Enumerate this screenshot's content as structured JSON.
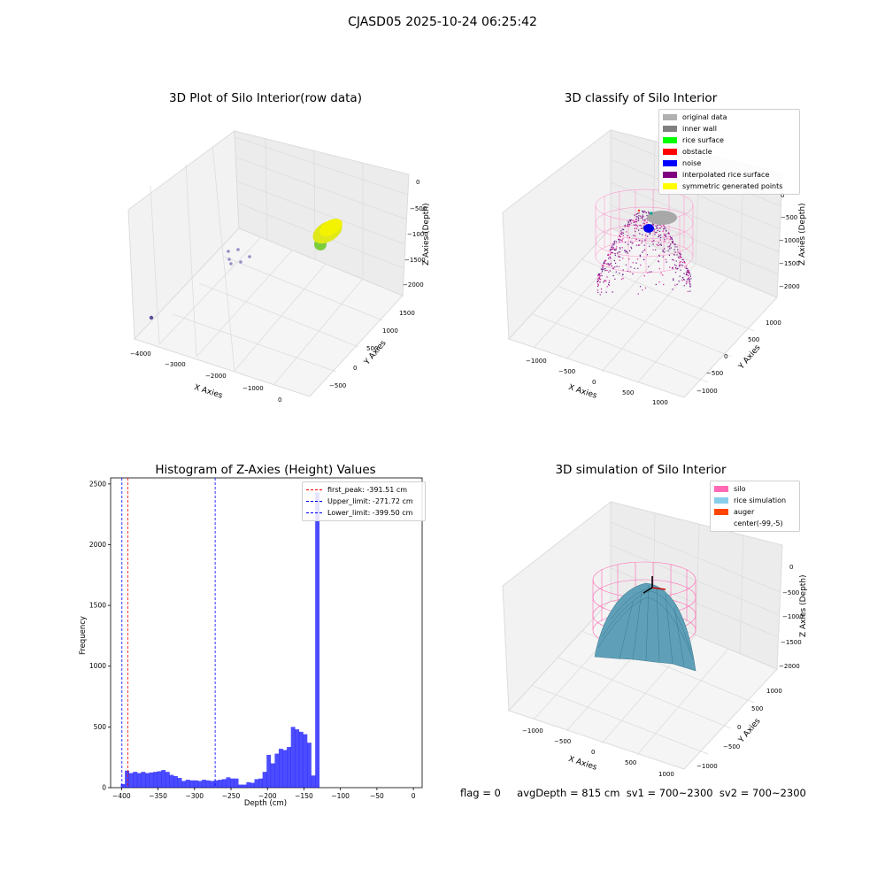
{
  "header": {
    "title": "CJASD05 2025-10-24 06:25:42"
  },
  "panels": {
    "raw": {
      "title": "3D Plot of Silo Interior(row data)"
    },
    "classify": {
      "title": "3D classify of Silo Interior"
    },
    "hist": {
      "title": "Histogram of Z-Axies (Height) Values"
    },
    "sim": {
      "title": "3D simulation of Silo Interior"
    }
  },
  "footer": {
    "flag": "flag = 0",
    "stats": "avgDepth = 815 cm  sv1 = 700~2300  sv2 = 700~2300"
  },
  "axes3d": {
    "raw": {
      "xlabel": "X Axies",
      "ylabel": "Y Axies",
      "zlabel": "Z Axies (Depth)",
      "xticks": [
        "-4000",
        "-3000",
        "-2000",
        "-1000",
        "0"
      ],
      "yticks": [
        "-500",
        "0",
        "500",
        "1000",
        "1500"
      ],
      "zticks": [
        "0",
        "-500",
        "-1000",
        "-1500",
        "-2000"
      ]
    },
    "classify": {
      "xlabel": "X Axies",
      "ylabel": "Y Axies",
      "zlabel": "Z Axies (Depth)",
      "xticks": [
        "-1000",
        "-500",
        "0",
        "500",
        "1000"
      ],
      "yticks": [
        "-1000",
        "-500",
        "0",
        "500",
        "1000"
      ],
      "zticks": [
        "0",
        "-500",
        "-1000",
        "-1500",
        "-2000"
      ]
    },
    "sim": {
      "xlabel": "X Axies",
      "ylabel": "Y Axies",
      "zlabel": "Z Axies (Depth)",
      "xticks": [
        "-1000",
        "-500",
        "0",
        "500",
        "1000"
      ],
      "yticks": [
        "-1000",
        "-500",
        "0",
        "500",
        "1000"
      ],
      "zticks": [
        "0",
        "-500",
        "-1000",
        "-1500",
        "-2000"
      ]
    }
  },
  "legends": {
    "classify": [
      {
        "label": "original data",
        "color": "#b0b0b0"
      },
      {
        "label": "inner wall",
        "color": "#808080"
      },
      {
        "label": "rice surface",
        "color": "#00ff00"
      },
      {
        "label": "obstacle",
        "color": "#ff0000"
      },
      {
        "label": "noise",
        "color": "#0000ff"
      },
      {
        "label": "interpolated rice surface",
        "color": "#800080"
      },
      {
        "label": "symmetric generated points",
        "color": "#ffff00"
      }
    ],
    "sim": [
      {
        "label": "silo",
        "color": "#ff69b4"
      },
      {
        "label": "rice simulation",
        "color": "#87ceeb"
      },
      {
        "label": "auger",
        "color": "#ff4500"
      },
      {
        "label": "center(-99,-5)",
        "color": ""
      }
    ],
    "hist": [
      {
        "label": "first_peak: -391.51 cm",
        "color": "#ff0000"
      },
      {
        "label": "Upper_limit: -271.72 cm",
        "color": "#0000ff"
      },
      {
        "label": "Lower_limit: -399.50 cm",
        "color": "#0000ff"
      }
    ]
  },
  "chart_data": {
    "type": "bar",
    "title": "Histogram of Z-Axies (Height) Values",
    "xlabel": "Depth (cm)",
    "ylabel": "Frequency",
    "xlim": [
      -415,
      12
    ],
    "ylim": [
      0,
      2550
    ],
    "xticks": [
      -400,
      -350,
      -300,
      -250,
      -200,
      -150,
      -100,
      -50,
      0
    ],
    "yticks": [
      0,
      500,
      1000,
      1500,
      2000,
      2500
    ],
    "bar_color": "#0000ff",
    "bin_start": -401,
    "bin_width": 5.55,
    "values": [
      30,
      140,
      120,
      130,
      120,
      130,
      120,
      125,
      130,
      135,
      145,
      130,
      105,
      95,
      80,
      55,
      65,
      60,
      60,
      55,
      65,
      60,
      55,
      60,
      65,
      70,
      85,
      75,
      75,
      25,
      25,
      45,
      40,
      70,
      75,
      130,
      270,
      200,
      280,
      320,
      310,
      335,
      500,
      480,
      460,
      440,
      370,
      100,
      2430
    ],
    "vlines": [
      {
        "x": -391.51,
        "color": "#ff0000"
      },
      {
        "x": -271.72,
        "color": "#0000ff"
      },
      {
        "x": -399.5,
        "color": "#0000ff"
      }
    ]
  }
}
